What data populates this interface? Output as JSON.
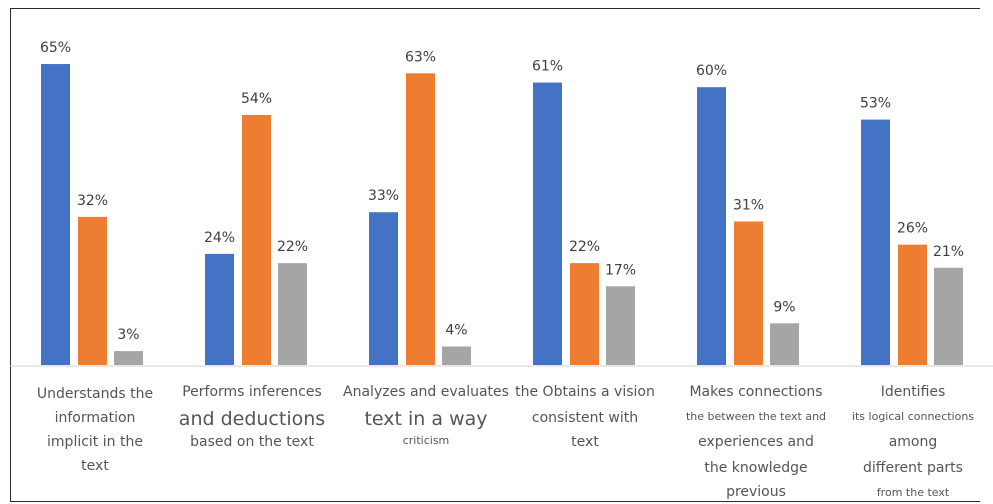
{
  "chart_data": {
    "type": "bar",
    "categories": [
      [
        "Understands the",
        "information",
        "implicit in the",
        "text"
      ],
      [
        "Performs inferences",
        "and deductions",
        "based on the text"
      ],
      [
        "Analyzes and evaluates",
        "text in a way",
        "criticism"
      ],
      [
        "the Obtains a vision",
        "consistent with",
        "text"
      ],
      [
        "Makes connections",
        "the between the text and",
        "experiences and",
        "the knowledge",
        "previous"
      ],
      [
        "Identifies",
        "its logical connections",
        "among",
        "different parts",
        "from the text"
      ]
    ],
    "series": [
      {
        "color": "#4472c4",
        "values": [
          65,
          24,
          33,
          61,
          60,
          53
        ]
      },
      {
        "color": "#ed7d31",
        "values": [
          32,
          54,
          63,
          22,
          31,
          26
        ]
      },
      {
        "color": "#a5a5a5",
        "values": [
          3,
          22,
          4,
          17,
          9,
          21
        ]
      }
    ],
    "value_suffix": "%",
    "ylim": [
      0,
      70
    ],
    "grid": false,
    "legend": "none"
  }
}
